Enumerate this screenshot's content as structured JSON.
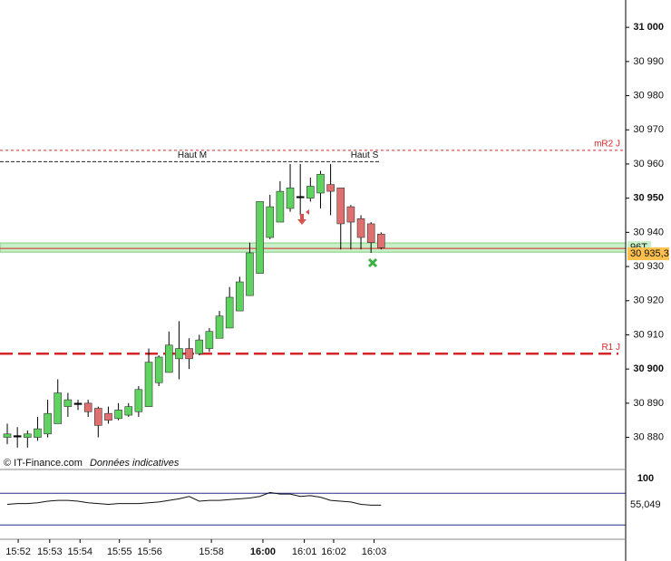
{
  "chart_data": [
    {
      "type": "candlestick",
      "source": "© IT-Finance.com",
      "note": "Données indicatives",
      "up_color": "#5fd35f",
      "down_color": "#e07070",
      "open": [
        30880,
        30880.5,
        30880,
        30880,
        30881,
        30884,
        30889,
        30890,
        30890,
        30888.5,
        30887,
        30885.5,
        30886.5,
        30887.5,
        30889,
        30896,
        30899,
        30903,
        30906,
        30904.5,
        30906,
        30909,
        30912,
        30917,
        30921.5,
        30928,
        30938.5,
        30943,
        30947,
        30950.5,
        30950,
        30951.5,
        30954,
        30953,
        30947.5,
        30944,
        30942.5,
        30939.5
      ],
      "high": [
        30884,
        30883,
        30882,
        30886,
        30891,
        30897,
        30893,
        30891,
        30891,
        30889,
        30889,
        30890,
        30890,
        30895,
        30906,
        30904,
        30911,
        30914,
        30909,
        30910,
        30912,
        30917,
        30924,
        30927,
        30937,
        30949,
        30951,
        30955,
        30960,
        30960,
        30956,
        30958,
        30960,
        30953,
        30948,
        30945,
        30943,
        30940
      ],
      "low": [
        30878,
        30877,
        30877,
        30879,
        30880,
        30884,
        30886,
        30888,
        30886,
        30880,
        30884,
        30885,
        30886,
        30886,
        30889,
        30895,
        30899,
        30897,
        30900,
        30904,
        30905,
        30909,
        30912,
        30917,
        30921.5,
        30928,
        30938,
        30943,
        30946,
        30945,
        30949,
        30947,
        30945,
        30935,
        30935,
        30935,
        30934,
        30935
      ],
      "close": [
        30881,
        30880.5,
        30881,
        30882.5,
        30887,
        30893,
        30891,
        30890,
        30887.5,
        30883.5,
        30885,
        30888,
        30889,
        30894,
        30902,
        30903.5,
        30907,
        30906,
        30903,
        30908.5,
        30911,
        30915.5,
        30921,
        30925.5,
        30934,
        30949,
        30947.5,
        30952,
        30953,
        30950.5,
        30953.5,
        30957,
        30952,
        30942.5,
        30943,
        30938.5,
        30937,
        30935.5
      ],
      "levels": [
        {
          "labels": [
            "mR2 J"
          ],
          "value": 30964,
          "color": "#d62728",
          "style": "dotted"
        },
        {
          "labels": [
            "Haut M",
            "Haut S"
          ],
          "value": 30960.7,
          "color": "#222222",
          "style": "dashed"
        },
        {
          "labels": [
            "R1 J"
          ],
          "value": 30904.5,
          "color": "#d62728",
          "style": "long-dash"
        }
      ],
      "zone": {
        "label": "96T",
        "range": [
          30934.2,
          30936.9
        ],
        "color": "#c8f0c8"
      },
      "last_price": {
        "value": 30935.3,
        "label": "30 935,3",
        "color": "#ffc04d"
      },
      "ylim": [
        30870.6,
        31008
      ],
      "yticks": [
        {
          "value": 30880,
          "label": "30 880"
        },
        {
          "value": 30890,
          "label": "30 890"
        },
        {
          "value": 30900,
          "label": "30 900"
        },
        {
          "value": 30910,
          "label": "30 910"
        },
        {
          "value": 30920,
          "label": "30 920"
        },
        {
          "value": 30930,
          "label": "30 930"
        },
        {
          "value": 30940,
          "label": "30 940"
        },
        {
          "value": 30950,
          "label": "30 950"
        },
        {
          "value": 30960,
          "label": "30 960"
        },
        {
          "value": 30970,
          "label": "30 970"
        },
        {
          "value": 30980,
          "label": "30 980"
        },
        {
          "value": 30990,
          "label": "30 990"
        },
        {
          "value": 31000,
          "label": "31 000"
        }
      ],
      "xlim": [
        -0.72,
        61.2
      ],
      "xticks": [
        {
          "value": 1.08,
          "label": "15:52"
        },
        {
          "value": 4.2,
          "label": "15:53"
        },
        {
          "value": 7.2,
          "label": "15:54"
        },
        {
          "value": 11.1,
          "label": "15:55"
        },
        {
          "value": 14.1,
          "label": "15:56"
        },
        {
          "value": 20.2,
          "label": "15:58"
        },
        {
          "value": 25.3,
          "label": "16:00"
        },
        {
          "value": 29.4,
          "label": "16:01"
        },
        {
          "value": 32.3,
          "label": "16:02"
        },
        {
          "value": 36.3,
          "label": "16:03"
        }
      ]
    },
    {
      "type": "line",
      "series": [
        {
          "color": "#111111",
          "values": [
            56,
            57,
            57,
            58,
            60,
            61,
            61,
            60,
            58,
            57,
            56,
            57,
            57,
            57,
            58,
            59,
            61,
            63,
            66,
            60,
            61,
            61,
            62,
            63,
            64,
            66,
            71,
            69,
            69,
            66,
            67,
            65,
            61,
            60,
            59,
            56,
            55,
            55.049
          ],
          "value_labels": [
            null,
            null,
            null,
            null,
            null,
            null,
            null,
            null,
            null,
            null,
            null,
            null,
            null,
            null,
            null,
            null,
            null,
            null,
            null,
            null,
            null,
            null,
            null,
            null,
            null,
            null,
            null,
            null,
            null,
            null,
            null,
            null,
            null,
            null,
            null,
            null,
            null,
            "55,049"
          ]
        }
      ],
      "levels": [
        70,
        30
      ],
      "level_color": "#2a2a8a",
      "ylim": [
        12,
        100
      ],
      "yticks": [
        100
      ]
    }
  ]
}
